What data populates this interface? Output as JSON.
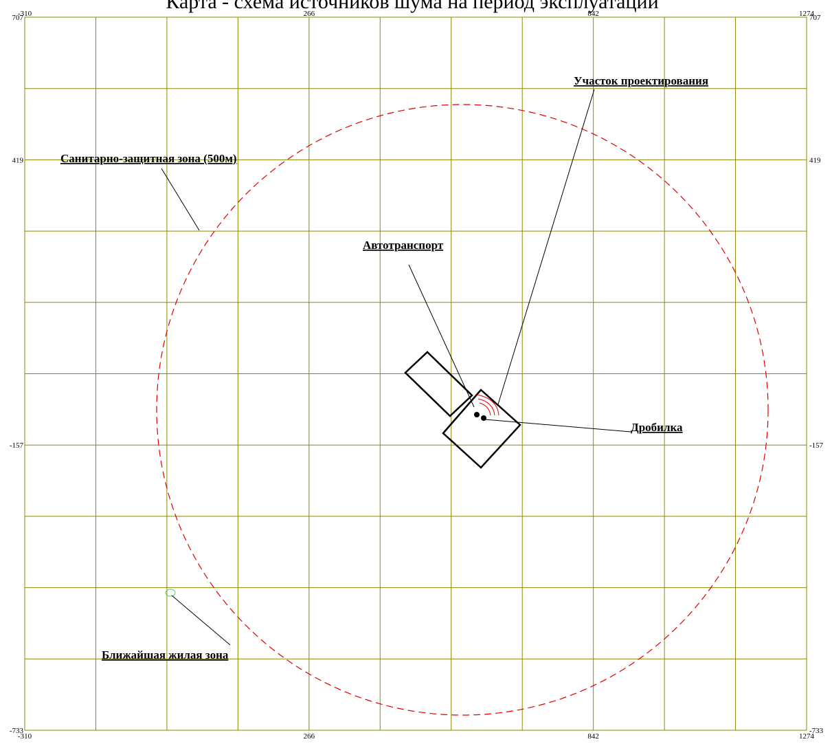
{
  "title": "Карта - схема источников шума на период эксплуатации",
  "axis": {
    "x_labels": [
      -310,
      266,
      842,
      1274
    ],
    "y_labels": [
      707,
      419,
      -157,
      -733
    ]
  },
  "labels": {
    "site": "Участок проектирования",
    "sanitary_zone": "Санитарно-защитная зона (500м)",
    "transport": "Автотранспорт",
    "crusher": "Дробилка",
    "residential": "Ближайшая жилая зона"
  }
}
